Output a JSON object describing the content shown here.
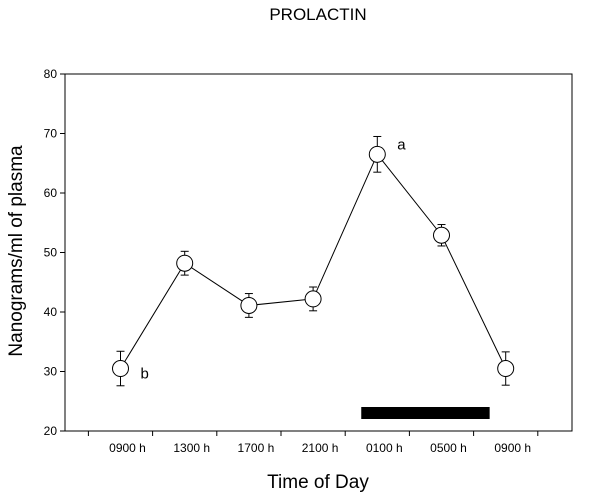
{
  "chart_data": {
    "type": "line",
    "title": "PROLACTIN",
    "xlabel": "Time of Day",
    "ylabel": "Nanograms/ml of plasma",
    "categories": [
      "0900 h",
      "1300 h",
      "1700 h",
      "2100 h",
      "0100 h",
      "0500 h",
      "0900 h"
    ],
    "ylim": [
      20,
      80
    ],
    "yticks": [
      20,
      30,
      40,
      50,
      60,
      70,
      80
    ],
    "grid": false,
    "series": [
      {
        "values": [
          30.5,
          48.2,
          41.1,
          42.2,
          66.5,
          52.9,
          30.5
        ],
        "errors": [
          2.9,
          2.0,
          2.0,
          2.0,
          3.0,
          1.8,
          2.8
        ],
        "marker": "open-circle",
        "color": "#000000"
      }
    ],
    "annotations": [
      {
        "text": "b",
        "category_index": 0
      },
      {
        "text": "a",
        "category_index": 4
      }
    ],
    "dark_period": {
      "from_category_index": 3.75,
      "to_category_index": 5.75,
      "color": "#000000"
    }
  }
}
